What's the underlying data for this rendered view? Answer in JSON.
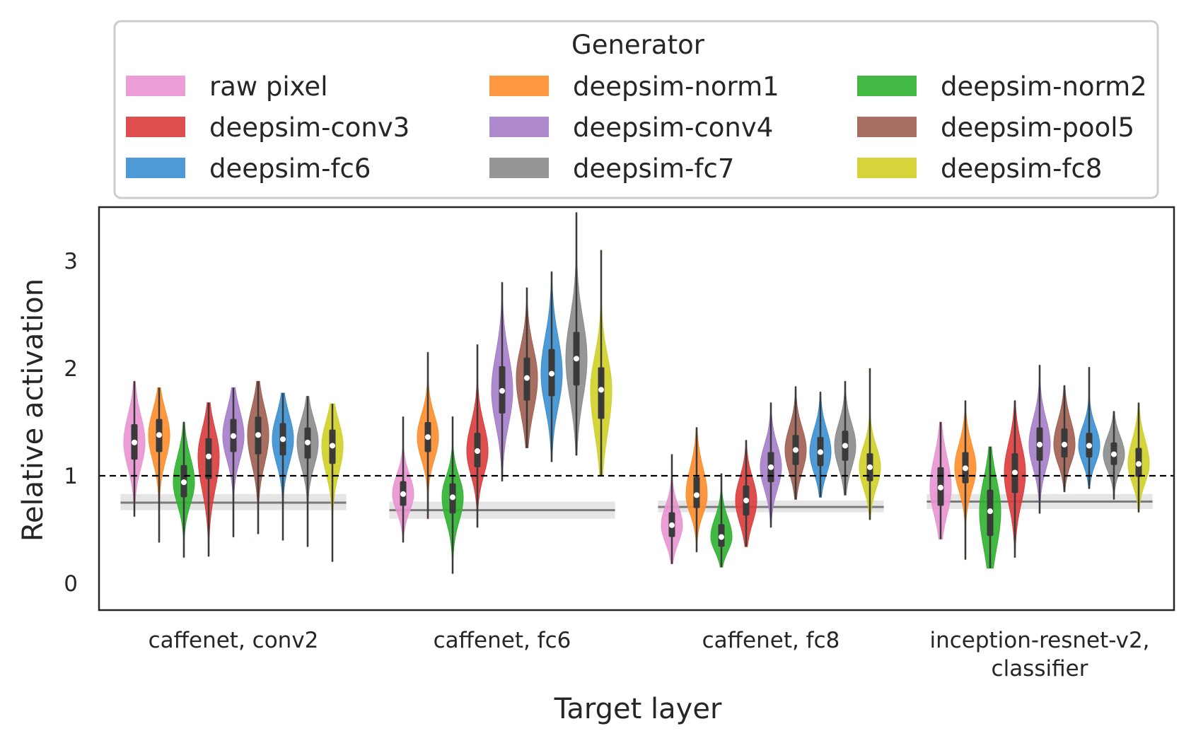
{
  "chart_data": {
    "type": "violin",
    "xlabel": "Target layer",
    "ylabel": "Relative activation",
    "ylim": [
      -0.25,
      3.5
    ],
    "yticks": [
      0,
      1,
      2,
      3
    ],
    "reference_line": 1,
    "grid": false,
    "legend": {
      "title": "Generator",
      "placement": "top (above plot)",
      "columns": 3
    },
    "categories": [
      {
        "lines": [
          "caffenet, conv2"
        ]
      },
      {
        "lines": [
          "caffenet, fc6"
        ]
      },
      {
        "lines": [
          "caffenet, fc8"
        ]
      },
      {
        "lines": [
          "inception-resnet-v2,",
          "classifier"
        ]
      }
    ],
    "baselines": [
      {
        "category": 0,
        "median": 0.75,
        "lo": 0.68,
        "hi": 0.83
      },
      {
        "category": 1,
        "median": 0.68,
        "lo": 0.6,
        "hi": 0.76
      },
      {
        "category": 2,
        "median": 0.71,
        "lo": 0.66,
        "hi": 0.77
      },
      {
        "category": 3,
        "median": 0.76,
        "lo": 0.69,
        "hi": 0.83
      }
    ],
    "series": [
      {
        "name": "raw pixel",
        "color": "#e994d0",
        "min": [
          0.62,
          0.38,
          0.18,
          0.41
        ],
        "q1": [
          1.15,
          0.72,
          0.43,
          0.72
        ],
        "median": [
          1.31,
          0.83,
          0.54,
          0.89
        ],
        "q3": [
          1.48,
          0.95,
          0.66,
          1.08
        ],
        "max": [
          1.88,
          1.55,
          1.2,
          1.5
        ]
      },
      {
        "name": "deepsim-norm1",
        "color": "#fd8d2c",
        "min": [
          0.38,
          0.6,
          0.29,
          0.22
        ],
        "q1": [
          1.22,
          1.22,
          0.7,
          0.93
        ],
        "median": [
          1.38,
          1.36,
          0.82,
          1.07
        ],
        "q3": [
          1.53,
          1.5,
          0.99,
          1.22
        ],
        "max": [
          1.82,
          2.15,
          1.45,
          1.7
        ]
      },
      {
        "name": "deepsim-norm2",
        "color": "#2eb12f",
        "min": [
          0.24,
          0.09,
          0.15,
          0.14
        ],
        "q1": [
          0.8,
          0.65,
          0.34,
          0.44
        ],
        "median": [
          0.94,
          0.8,
          0.43,
          0.67
        ],
        "q3": [
          1.1,
          0.93,
          0.55,
          0.87
        ],
        "max": [
          1.5,
          1.55,
          1.02,
          1.27
        ]
      },
      {
        "name": "deepsim-conv3",
        "color": "#dc3b3b",
        "min": [
          0.25,
          0.52,
          0.34,
          0.24
        ],
        "q1": [
          0.97,
          1.08,
          0.63,
          0.84
        ],
        "median": [
          1.18,
          1.23,
          0.77,
          1.03
        ],
        "q3": [
          1.35,
          1.4,
          0.91,
          1.21
        ],
        "max": [
          1.68,
          2.22,
          1.33,
          1.7
        ]
      },
      {
        "name": "deepsim-conv4",
        "color": "#a57cc9",
        "min": [
          0.43,
          0.95,
          0.52,
          0.65
        ],
        "q1": [
          1.22,
          1.58,
          0.94,
          1.14
        ],
        "median": [
          1.37,
          1.79,
          1.08,
          1.29
        ],
        "q3": [
          1.53,
          2.02,
          1.22,
          1.45
        ],
        "max": [
          1.82,
          2.8,
          1.68,
          2.03
        ]
      },
      {
        "name": "deepsim-pool5",
        "color": "#9e5e50",
        "min": [
          0.46,
          1.26,
          0.78,
          0.85
        ],
        "q1": [
          1.2,
          1.7,
          1.1,
          1.17
        ],
        "median": [
          1.38,
          1.91,
          1.24,
          1.29
        ],
        "q3": [
          1.55,
          2.1,
          1.38,
          1.44
        ],
        "max": [
          1.88,
          2.75,
          1.83,
          1.84
        ]
      },
      {
        "name": "deepsim-fc6",
        "color": "#3a8fd3",
        "min": [
          0.4,
          1.13,
          0.8,
          0.88
        ],
        "q1": [
          1.19,
          1.74,
          1.09,
          1.17
        ],
        "median": [
          1.34,
          1.95,
          1.22,
          1.28
        ],
        "q3": [
          1.49,
          2.18,
          1.36,
          1.4
        ],
        "max": [
          1.77,
          2.9,
          1.78,
          2.01
        ]
      },
      {
        "name": "deepsim-fc7",
        "color": "#8b8b8b",
        "min": [
          0.34,
          1.19,
          0.82,
          0.78
        ],
        "q1": [
          1.16,
          1.84,
          1.14,
          1.1
        ],
        "median": [
          1.31,
          2.09,
          1.28,
          1.2
        ],
        "q3": [
          1.45,
          2.34,
          1.42,
          1.31
        ],
        "max": [
          1.74,
          3.45,
          1.88,
          1.6
        ]
      },
      {
        "name": "deepsim-fc8",
        "color": "#d0cf26",
        "min": [
          0.2,
          1.0,
          0.59,
          0.66
        ],
        "q1": [
          1.11,
          1.53,
          0.95,
          0.99
        ],
        "median": [
          1.28,
          1.8,
          1.08,
          1.11
        ],
        "q3": [
          1.43,
          2.01,
          1.21,
          1.26
        ],
        "max": [
          1.67,
          3.1,
          2.0,
          1.68
        ]
      }
    ]
  }
}
